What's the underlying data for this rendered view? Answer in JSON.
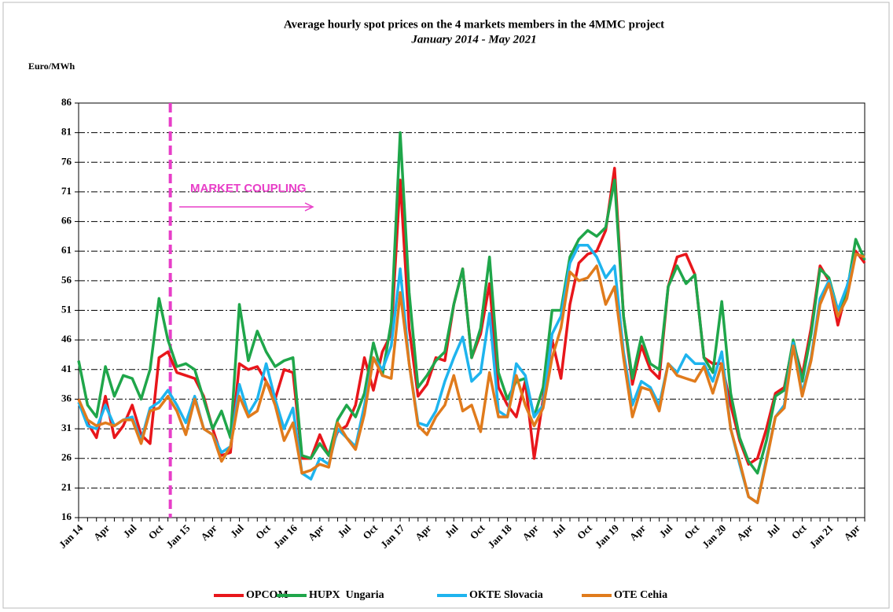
{
  "chart_data": {
    "type": "line",
    "title": "Average hourly spot prices on the 4 markets members in the 4MMC project",
    "subtitle": "January 2014 - May 2021",
    "y_label": "Euro/MWh",
    "annotation": "MARKET COUPLING",
    "categories": [
      "Jan 14",
      null,
      null,
      "Apr",
      null,
      null,
      "Jul",
      null,
      null,
      "Oct",
      null,
      null,
      "Jan 15",
      null,
      null,
      "Apr",
      null,
      null,
      "Jul",
      null,
      null,
      "Oct",
      null,
      null,
      "Jan 16",
      null,
      null,
      "Apr",
      null,
      null,
      "Jul",
      null,
      null,
      "Oct",
      null,
      null,
      "Jan 17",
      null,
      null,
      "Apr",
      null,
      null,
      "Jul",
      null,
      null,
      "Oct",
      null,
      null,
      "Jan 18",
      null,
      null,
      "Apr",
      null,
      null,
      "Jul",
      null,
      null,
      "Oct",
      null,
      null,
      "Jan 19",
      null,
      null,
      "Apr",
      null,
      null,
      "Jul",
      null,
      null,
      "Oct",
      null,
      null,
      "Jan 20",
      null,
      null,
      "Apr",
      null,
      null,
      "Jul",
      null,
      null,
      "Oct",
      null,
      null,
      "Jan 21",
      null,
      null,
      "Apr",
      null
    ],
    "ylim": [
      16,
      86
    ],
    "yticks": [
      16,
      21,
      26,
      31,
      36,
      41,
      46,
      51,
      56,
      61,
      66,
      71,
      76,
      81,
      86
    ],
    "grid": true,
    "series": [
      {
        "name": "OPCOM",
        "color": "#e8161b",
        "values": [
          36,
          32,
          29.5,
          36.5,
          29.5,
          31.5,
          35,
          30,
          28.5,
          43,
          44,
          40.5,
          40,
          39.5,
          36.5,
          31,
          26.5,
          27,
          42,
          41,
          41.5,
          39,
          36,
          41,
          40.5,
          26,
          26,
          30,
          26.5,
          30.5,
          31.5,
          35,
          43,
          37.5,
          44,
          47,
          73,
          48,
          36.5,
          38.5,
          43,
          42.5,
          52,
          58,
          43,
          47,
          55.5,
          38,
          35,
          33,
          39,
          26,
          36,
          46,
          39.5,
          52,
          59,
          60.5,
          61,
          64.5,
          75,
          50,
          38.5,
          45,
          41,
          39.5,
          55,
          60,
          60.5,
          57,
          43,
          42,
          42,
          35,
          29,
          25,
          26,
          31,
          37,
          38,
          45.5,
          40,
          48,
          58.5,
          56,
          48.5,
          54.5,
          61,
          59
        ]
      },
      {
        "name": "HUPX  Ungaria",
        "color": "#1fa64a",
        "values": [
          42.5,
          35,
          33,
          41.5,
          36.5,
          40,
          39.5,
          36,
          41,
          53,
          46,
          41.5,
          42,
          41,
          36,
          31,
          34,
          29.5,
          52,
          42.5,
          47.5,
          44,
          41.5,
          42.5,
          43,
          26.5,
          26,
          28.5,
          26.5,
          32.5,
          35,
          33,
          37,
          45.5,
          40,
          49,
          81,
          54,
          38,
          40,
          42.5,
          44,
          52,
          58,
          43,
          48,
          60,
          40.5,
          36,
          39,
          39.5,
          33,
          38,
          51,
          51,
          60,
          63,
          64.5,
          63.5,
          65,
          73,
          50,
          39.5,
          46.5,
          42,
          41,
          55,
          58.5,
          55.5,
          57,
          43,
          40.5,
          52.5,
          37,
          29.5,
          25.5,
          23.5,
          29,
          36.5,
          37.5,
          46,
          39,
          47,
          58,
          56.5,
          51,
          54,
          63,
          59.5
        ]
      },
      {
        "name": "OKTE Slovacia",
        "color": "#1eb4ee",
        "values": [
          35.5,
          31.5,
          31,
          35,
          31.5,
          32.5,
          33,
          29,
          34.5,
          35.5,
          37.5,
          35,
          32,
          36.5,
          31,
          30,
          27,
          28,
          38.5,
          33.5,
          36,
          42,
          36,
          31,
          34.5,
          23.5,
          22.5,
          26,
          25,
          31,
          29.5,
          28,
          35,
          43,
          41,
          45,
          58,
          42,
          32,
          31.5,
          34,
          39,
          43,
          46.5,
          39,
          40.5,
          50.5,
          34,
          33,
          42,
          40,
          33,
          35,
          47,
          50,
          59,
          62,
          62,
          60,
          56.5,
          58.5,
          44,
          35,
          39,
          38,
          35,
          42,
          40.5,
          43.5,
          42,
          42,
          39,
          44,
          31,
          25,
          19.5,
          18.5,
          26,
          33,
          35,
          45.5,
          37,
          43,
          53,
          56,
          51,
          55,
          60.5,
          60
        ]
      },
      {
        "name": "OTE Cehia",
        "color": "#e07b1c",
        "values": [
          36,
          32.5,
          31.5,
          32,
          31.5,
          32.5,
          32.5,
          28.5,
          34,
          34.5,
          36.5,
          34,
          30,
          36,
          31,
          30,
          25.5,
          28,
          36.5,
          33,
          34,
          39,
          35,
          29,
          32,
          23.5,
          24,
          25,
          24.5,
          32,
          29.5,
          27.5,
          33.5,
          43,
          40,
          39.5,
          54,
          42,
          31.5,
          30,
          33,
          35,
          40,
          34,
          35,
          30.5,
          40.5,
          33,
          33,
          40,
          35,
          31.5,
          34.5,
          43,
          48,
          57.5,
          56,
          56.5,
          58.5,
          52,
          55,
          43,
          33,
          38,
          37.5,
          34,
          42,
          40,
          39.5,
          39,
          41.5,
          37,
          42,
          31,
          25.5,
          19.5,
          18.5,
          25.5,
          33,
          34.5,
          45,
          36.5,
          42.5,
          52,
          55.5,
          50,
          53,
          60.5,
          60
        ]
      }
    ]
  }
}
